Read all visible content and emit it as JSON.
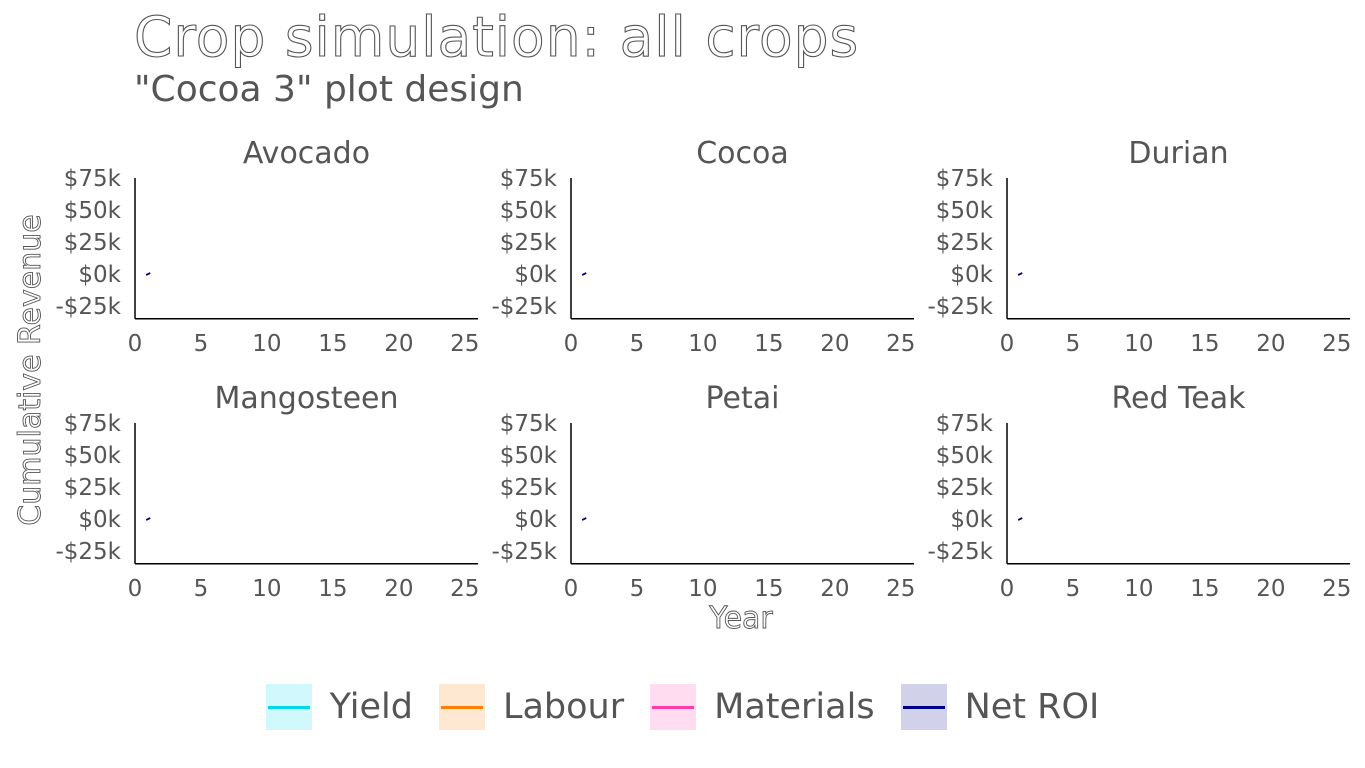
{
  "title": "Crop simulation: all crops",
  "subtitle": "\"Cocoa 3\" plot design",
  "chart_data": {
    "type": "line",
    "xlabel": "Year",
    "ylabel": "Cumulative Revenue",
    "xlim": [
      0,
      26
    ],
    "ylim": [
      -35000,
      75000
    ],
    "x_ticks": [
      0,
      5,
      10,
      15,
      20,
      25
    ],
    "x_tick_labels": [
      "0",
      "5",
      "10",
      "15",
      "20",
      "25"
    ],
    "y_ticks": [
      75000,
      50000,
      25000,
      0,
      -25000
    ],
    "y_tick_labels": [
      "$75k",
      "$50k",
      "$25k",
      "$0k",
      "-$25k"
    ],
    "grid": false,
    "legend_position": "bottom",
    "series_colors": {
      "Yield": "#00d8f0",
      "Labour": "#ff8000",
      "Materials": "#ff3eab",
      "Net ROI": "#00008b"
    },
    "legend": [
      "Yield",
      "Labour",
      "Materials",
      "Net ROI"
    ],
    "panels": [
      {
        "title": "Avocado",
        "series": [
          {
            "name": "Yield",
            "x": [
              1
            ],
            "y": [
              0
            ]
          },
          {
            "name": "Labour",
            "x": [
              1
            ],
            "y": [
              0
            ]
          },
          {
            "name": "Materials",
            "x": [
              1
            ],
            "y": [
              0
            ]
          },
          {
            "name": "Net ROI",
            "x": [
              1
            ],
            "y": [
              0
            ]
          }
        ]
      },
      {
        "title": "Cocoa",
        "series": [
          {
            "name": "Yield",
            "x": [
              1
            ],
            "y": [
              0
            ]
          },
          {
            "name": "Labour",
            "x": [
              1
            ],
            "y": [
              0
            ]
          },
          {
            "name": "Materials",
            "x": [
              1
            ],
            "y": [
              0
            ]
          },
          {
            "name": "Net ROI",
            "x": [
              1
            ],
            "y": [
              0
            ]
          }
        ]
      },
      {
        "title": "Durian",
        "series": [
          {
            "name": "Yield",
            "x": [
              1
            ],
            "y": [
              0
            ]
          },
          {
            "name": "Labour",
            "x": [
              1
            ],
            "y": [
              0
            ]
          },
          {
            "name": "Materials",
            "x": [
              1
            ],
            "y": [
              0
            ]
          },
          {
            "name": "Net ROI",
            "x": [
              1
            ],
            "y": [
              0
            ]
          }
        ]
      },
      {
        "title": "Mangosteen",
        "series": [
          {
            "name": "Yield",
            "x": [
              1
            ],
            "y": [
              0
            ]
          },
          {
            "name": "Labour",
            "x": [
              1
            ],
            "y": [
              0
            ]
          },
          {
            "name": "Materials",
            "x": [
              1
            ],
            "y": [
              0
            ]
          },
          {
            "name": "Net ROI",
            "x": [
              1
            ],
            "y": [
              0
            ]
          }
        ]
      },
      {
        "title": "Petai",
        "series": [
          {
            "name": "Yield",
            "x": [
              1
            ],
            "y": [
              0
            ]
          },
          {
            "name": "Labour",
            "x": [
              1
            ],
            "y": [
              0
            ]
          },
          {
            "name": "Materials",
            "x": [
              1
            ],
            "y": [
              0
            ]
          },
          {
            "name": "Net ROI",
            "x": [
              1
            ],
            "y": [
              0
            ]
          }
        ]
      },
      {
        "title": "Red Teak",
        "series": [
          {
            "name": "Yield",
            "x": [
              1
            ],
            "y": [
              0
            ]
          },
          {
            "name": "Labour",
            "x": [
              1
            ],
            "y": [
              0
            ]
          },
          {
            "name": "Materials",
            "x": [
              1
            ],
            "y": [
              0
            ]
          },
          {
            "name": "Net ROI",
            "x": [
              1
            ],
            "y": [
              0
            ]
          }
        ]
      }
    ]
  }
}
